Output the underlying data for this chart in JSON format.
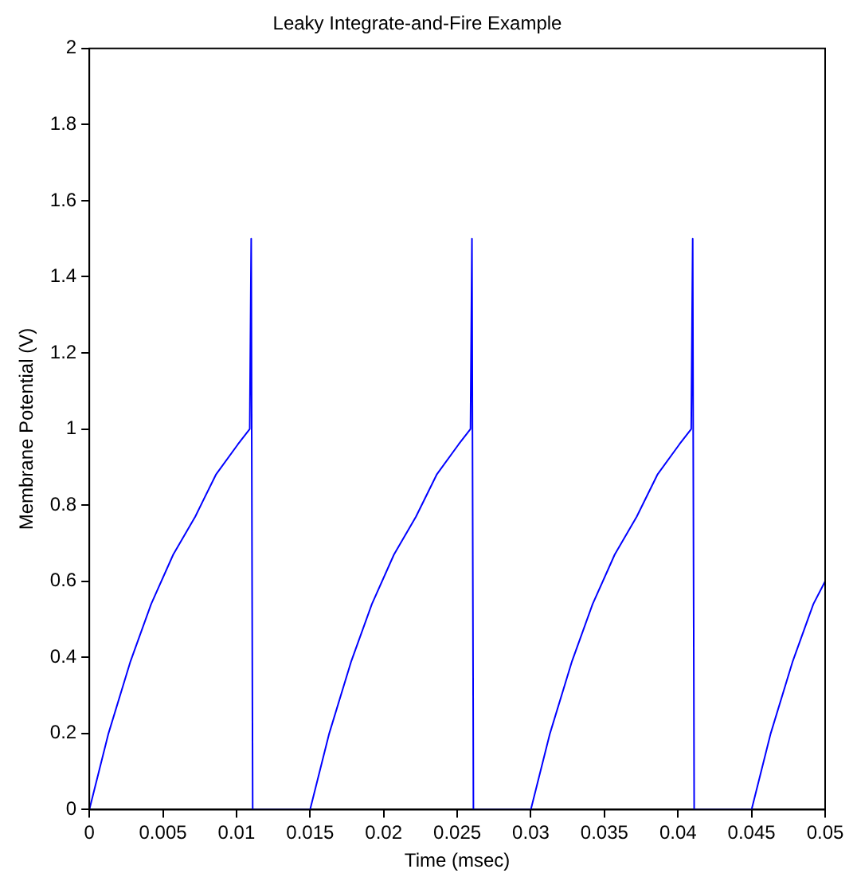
{
  "chart_data": {
    "type": "line",
    "title": "Leaky Integrate-and-Fire Example",
    "xlabel": "Time (msec)",
    "ylabel": "Membrane Potential (V)",
    "x": [
      0,
      0.0013,
      0.0028,
      0.0042,
      0.0057,
      0.0072,
      0.0086,
      0.0101,
      0.0109,
      0.011,
      0.0111,
      0.015,
      0.0163,
      0.0178,
      0.0192,
      0.0207,
      0.0222,
      0.0236,
      0.0251,
      0.0259,
      0.026,
      0.0261,
      0.03,
      0.0313,
      0.0328,
      0.0342,
      0.0357,
      0.0372,
      0.0386,
      0.0401,
      0.0409,
      0.041,
      0.0411,
      0.045,
      0.0463,
      0.0478,
      0.0492,
      0.05
    ],
    "series": [
      {
        "color": "#0000ff",
        "values": [
          0,
          0.2,
          0.39,
          0.54,
          0.67,
          0.77,
          0.88,
          0.96,
          1,
          1.5,
          0,
          0,
          0.2,
          0.39,
          0.54,
          0.67,
          0.77,
          0.88,
          0.96,
          1,
          1.5,
          0,
          0,
          0.2,
          0.39,
          0.54,
          0.67,
          0.77,
          0.88,
          0.96,
          1,
          1.5,
          0,
          0,
          0.2,
          0.39,
          0.54,
          0.6
        ]
      }
    ],
    "xlim": [
      0,
      0.05
    ],
    "xticks": [
      0,
      0.005,
      0.01,
      0.015,
      0.02,
      0.025,
      0.03,
      0.035,
      0.04,
      0.045,
      0.05
    ],
    "ylim": [
      0,
      2
    ],
    "yticks": [
      0,
      0.2,
      0.4,
      0.6,
      0.8,
      1,
      1.2,
      1.4,
      1.6,
      1.8,
      2
    ],
    "grid": false,
    "legend": false,
    "marker": "none",
    "line_style": "solid"
  }
}
